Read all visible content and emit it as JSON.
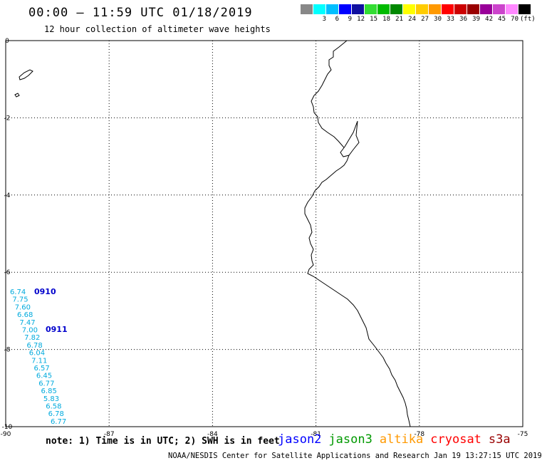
{
  "title": "00:00 – 11:59 UTC 01/18/2019",
  "subtitle": "12 hour collection of altimeter wave heights",
  "legend": {
    "colors": [
      "#888888",
      "#00ffff",
      "#00bfff",
      "#0000ff",
      "#1010a0",
      "#33dd33",
      "#00bb00",
      "#008800",
      "#ffff00",
      "#ffcc00",
      "#ff9900",
      "#ff0000",
      "#cc0000",
      "#990000",
      "#990099",
      "#cc44cc",
      "#ff88ff",
      "#000000"
    ],
    "labels": [
      "3",
      "6",
      "9",
      "12",
      "15",
      "18",
      "21",
      "24",
      "27",
      "30",
      "33",
      "36",
      "39",
      "42",
      "45",
      "70"
    ],
    "unit": "(ft)"
  },
  "axes": {
    "x_ticks": [
      "-90",
      "-87",
      "-84",
      "-81",
      "-78",
      "-75"
    ],
    "y_ticks": [
      "0",
      "-2",
      "-4",
      "-6",
      "-8",
      "-10"
    ],
    "lon_range": [
      -90,
      -75
    ],
    "lat_range": [
      -10,
      0
    ]
  },
  "observations": {
    "color": "#00aadd",
    "values": [
      "6.74",
      "7.75",
      "7.60",
      "6.68",
      "7.47",
      "7.00",
      "7.82",
      "6.78",
      "6.04",
      "7.11",
      "6.57",
      "6.45",
      "6.77",
      "6.85",
      "5.83",
      "6.58",
      "6.78",
      "6.77"
    ],
    "time_labels": [
      {
        "text": "0910",
        "color": "#0000cc"
      },
      {
        "text": "0911",
        "color": "#0000cc"
      }
    ]
  },
  "note": "note: 1) Time is in UTC; 2) SWH is in feet",
  "satellites": [
    {
      "name": "jason2",
      "color": "#0000ff"
    },
    {
      "name": "jason3",
      "color": "#009900"
    },
    {
      "name": "altika",
      "color": "#ff9900"
    },
    {
      "name": "cryosat",
      "color": "#ff0000"
    },
    {
      "name": "s3a",
      "color": "#990000"
    }
  ],
  "footer": "NOAA/NESDIS Center for Satellite Applications and Research   Jan 19 13:27:15 UTC 2019"
}
